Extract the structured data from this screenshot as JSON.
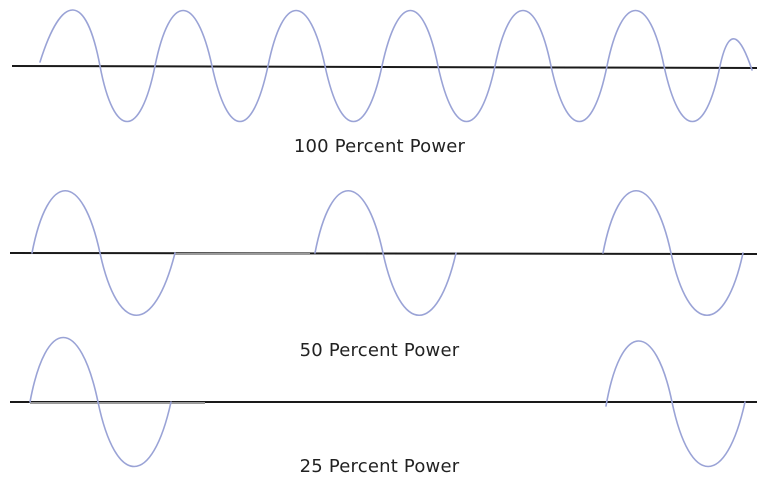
{
  "colors": {
    "wave": "#9aa3d6",
    "baseline": "#1a1a1a",
    "background": "#ffffff"
  },
  "panels": [
    {
      "caption": "100 Percent Power",
      "power_percent": 100,
      "cycles_shown": 6
    },
    {
      "caption": "50 Percent Power",
      "power_percent": 50,
      "cycles_shown": 3
    },
    {
      "caption": "25 Percent Power",
      "power_percent": 25,
      "cycles_shown": 2
    }
  ]
}
